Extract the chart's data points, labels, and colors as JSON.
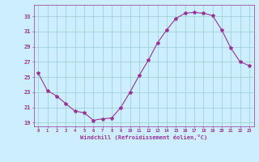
{
  "x": [
    0,
    1,
    2,
    3,
    4,
    5,
    6,
    7,
    8,
    9,
    10,
    11,
    12,
    13,
    14,
    15,
    16,
    17,
    18,
    19,
    20,
    21,
    22,
    23
  ],
  "y": [
    25.5,
    23.2,
    22.5,
    21.5,
    20.5,
    20.3,
    19.3,
    19.5,
    19.6,
    21.0,
    23.0,
    25.2,
    27.2,
    29.5,
    31.2,
    32.7,
    33.4,
    33.5,
    33.4,
    33.1,
    31.2,
    28.8,
    27.0,
    26.5
  ],
  "line_color": "#993399",
  "marker": "*",
  "marker_size": 3,
  "bg_color": "#cceeff",
  "grid_color": "#99cccc",
  "xlabel": "Windchill (Refroidissement éolien,°C)",
  "ylabel_ticks": [
    19,
    21,
    23,
    25,
    27,
    29,
    31,
    33
  ],
  "xlim": [
    -0.5,
    23.5
  ],
  "ylim": [
    18.5,
    34.5
  ]
}
